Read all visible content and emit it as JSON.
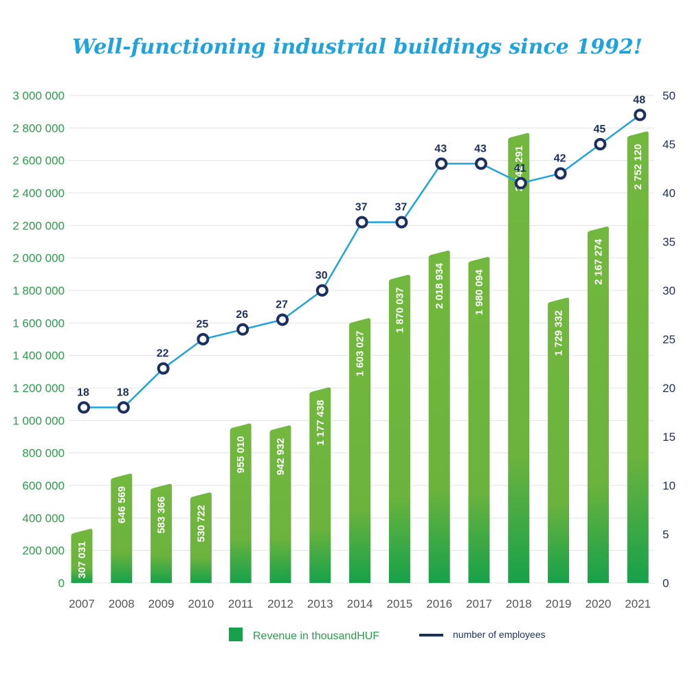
{
  "chart_data": {
    "type": "bar",
    "title": "Well-functioning industrial buildings since 1992!",
    "categories": [
      "2007",
      "2008",
      "2009",
      "2010",
      "2011",
      "2012",
      "2013",
      "2014",
      "2015",
      "2016",
      "2017",
      "2018",
      "2019",
      "2020",
      "2021"
    ],
    "series": [
      {
        "name": "Revenue in thousandHUF",
        "type": "bar",
        "axis": "left",
        "values": [
          307031,
          646569,
          583366,
          530722,
          955010,
          942932,
          1177438,
          1603027,
          1870037,
          2018934,
          1980094,
          2742291,
          1729332,
          2167274,
          2752120
        ],
        "labels": [
          "307 031",
          "646 569",
          "583 366",
          "530 722",
          "955 010",
          "942 932",
          "1 177 438",
          "1 603 027",
          "1 870 037",
          "2 018 934",
          "1 980 094",
          "2 742 291",
          "1 729 332",
          "2 167 274",
          "2 752 120"
        ],
        "color": "#6db33f"
      },
      {
        "name": "number of employees",
        "type": "line",
        "axis": "right",
        "values": [
          18,
          18,
          22,
          25,
          26,
          27,
          30,
          37,
          37,
          43,
          43,
          41,
          42,
          45,
          48
        ],
        "color": "#1ea3dc",
        "marker_color": "#1c2f5e"
      }
    ],
    "y_left": {
      "ylim": [
        0,
        3000000
      ],
      "ticks": [
        0,
        200000,
        400000,
        600000,
        800000,
        1000000,
        1200000,
        1400000,
        1600000,
        1800000,
        2000000,
        2200000,
        2400000,
        2600000,
        2800000,
        3000000
      ],
      "tick_labels": [
        "0",
        "200 000",
        "400 000",
        "600 000",
        "800 000",
        "1 000 000",
        "1 200 000",
        "1 400 000",
        "1 600 000",
        "1 800 000",
        "2 000 000",
        "2 200 000",
        "2 400 000",
        "2 600 000",
        "2 800 000",
        "3 000 000"
      ]
    },
    "y_right": {
      "ylim": [
        0,
        50
      ],
      "ticks": [
        0,
        5,
        10,
        15,
        20,
        25,
        30,
        35,
        40,
        45,
        50
      ],
      "tick_labels": [
        "0",
        "5",
        "10",
        "15",
        "20",
        "25",
        "30",
        "35",
        "40",
        "45",
        "50"
      ]
    },
    "grid": true,
    "legend_position": "bottom"
  }
}
